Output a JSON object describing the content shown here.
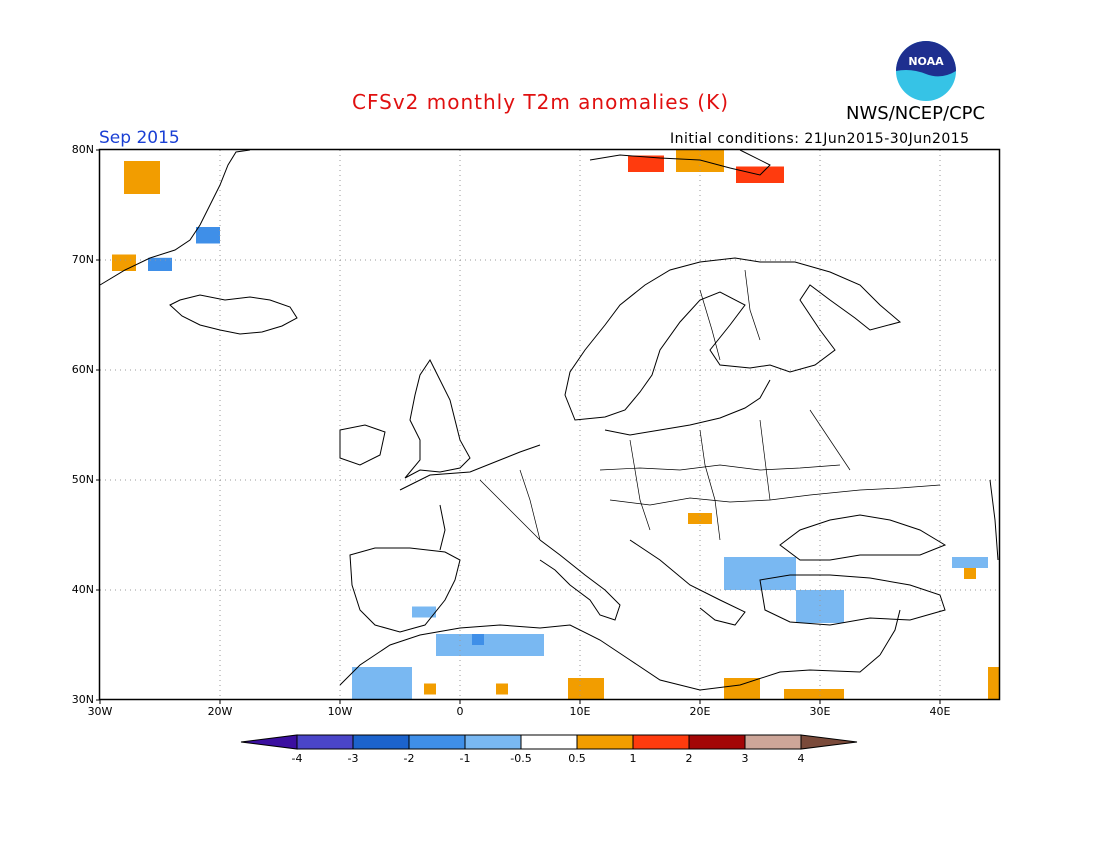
{
  "header": {
    "title": "CFSv2 monthly T2m anomalies (K)",
    "agency": "NWS/NCEP/CPC",
    "month": "Sep 2015",
    "initial_conditions": "Initial conditions: 21Jun2015-30Jun2015"
  },
  "logo": {
    "text": "NOAA",
    "colors": {
      "dark": "#1e2f8f",
      "light": "#36c3e6"
    }
  },
  "axes": {
    "lat_labels": [
      "80N",
      "70N",
      "60N",
      "50N",
      "40N",
      "30N"
    ],
    "lon_labels": [
      "30W",
      "20W",
      "10W",
      "0",
      "10E",
      "20E",
      "30E",
      "40E"
    ]
  },
  "colorbar": {
    "labels": [
      "-4",
      "-3",
      "-2",
      "-1",
      "-0.5",
      "0.5",
      "1",
      "2",
      "3",
      "4"
    ],
    "colors": [
      "#3b0fa0",
      "#4a45c8",
      "#1c63cc",
      "#3f8fe8",
      "#79b8f2",
      "#ffffff",
      "#f29d00",
      "#ff3b0e",
      "#a30606",
      "#cda699",
      "#7a4a3a"
    ]
  },
  "map_data": {
    "extent": {
      "lon": [
        -30,
        45
      ],
      "lat": [
        30,
        80
      ]
    },
    "anomaly_cells": [
      {
        "lon": -28,
        "lat": 76,
        "w": 3,
        "h": 3,
        "value": 0.7
      },
      {
        "lon": -29,
        "lat": 69,
        "w": 2,
        "h": 1.5,
        "value": 0.7
      },
      {
        "lon": -22,
        "lat": 71.5,
        "w": 2,
        "h": 1.5,
        "value": -1.2
      },
      {
        "lon": -26,
        "lat": 69,
        "w": 2,
        "h": 1.2,
        "value": -1.2
      },
      {
        "lon": 14,
        "lat": 78,
        "w": 3,
        "h": 1.5,
        "value": 1.5
      },
      {
        "lon": 18,
        "lat": 78,
        "w": 4,
        "h": 2,
        "value": 0.7
      },
      {
        "lon": 23,
        "lat": 77,
        "w": 4,
        "h": 1.5,
        "value": 1.5
      },
      {
        "lon": 19,
        "lat": 46,
        "w": 2,
        "h": 1,
        "value": 0.7
      },
      {
        "lon": 22,
        "lat": 40,
        "w": 6,
        "h": 3,
        "value": -0.8
      },
      {
        "lon": 28,
        "lat": 37,
        "w": 4,
        "h": 3,
        "value": -0.8
      },
      {
        "lon": 41,
        "lat": 42,
        "w": 3,
        "h": 1,
        "value": -0.8
      },
      {
        "lon": 42,
        "lat": 41,
        "w": 1,
        "h": 1,
        "value": 0.7
      },
      {
        "lon": -4,
        "lat": 37.5,
        "w": 2,
        "h": 1,
        "value": -0.8
      },
      {
        "lon": -2,
        "lat": 34,
        "w": 9,
        "h": 2,
        "value": -0.8
      },
      {
        "lon": 1,
        "lat": 35,
        "w": 1,
        "h": 1,
        "value": -1.2
      },
      {
        "lon": -9,
        "lat": 30,
        "w": 5,
        "h": 3,
        "value": -0.8
      },
      {
        "lon": -3,
        "lat": 30.5,
        "w": 1,
        "h": 1,
        "value": 0.7
      },
      {
        "lon": 3,
        "lat": 30.5,
        "w": 1,
        "h": 1,
        "value": 0.7
      },
      {
        "lon": 9,
        "lat": 30,
        "w": 3,
        "h": 2,
        "value": 0.7
      },
      {
        "lon": 22,
        "lat": 30,
        "w": 3,
        "h": 2,
        "value": 0.7
      },
      {
        "lon": 27,
        "lat": 30,
        "w": 5,
        "h": 1,
        "value": 0.7
      },
      {
        "lon": 44,
        "lat": 30,
        "w": 1,
        "h": 3,
        "value": 0.7
      }
    ]
  }
}
